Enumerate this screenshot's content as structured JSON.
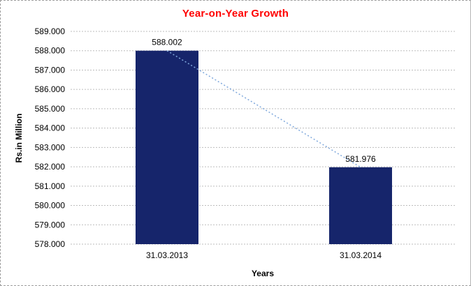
{
  "chart_data": {
    "type": "bar",
    "title": "Year-on-Year Growth",
    "categories": [
      "31.03.2013",
      "31.03.2014"
    ],
    "values": [
      588.002,
      581.976
    ],
    "value_labels": [
      "588.002",
      "581.976"
    ],
    "xlabel": "Years",
    "ylabel": "Rs.in Million",
    "ylim": [
      578,
      589
    ],
    "ytick_step": 1,
    "yticks": [
      578,
      579,
      580,
      581,
      582,
      583,
      584,
      585,
      586,
      587,
      588,
      589
    ],
    "ytick_labels": [
      "578.000",
      "579.000",
      "580.000",
      "581.000",
      "582.000",
      "583.000",
      "584.000",
      "585.000",
      "586.000",
      "587.000",
      "588.000",
      "589.000"
    ],
    "grid": "horizontal-dotted",
    "legend": "none",
    "trendline": {
      "style": "dotted",
      "from": "31.03.2013",
      "to": "31.03.2014"
    },
    "colors": {
      "bar": "#16256B",
      "title": "#FF0000",
      "trendline": "#7FA8DC",
      "grid": "#BDBDBD",
      "frame_border": "#9C9C9C",
      "text": "#000000"
    }
  }
}
